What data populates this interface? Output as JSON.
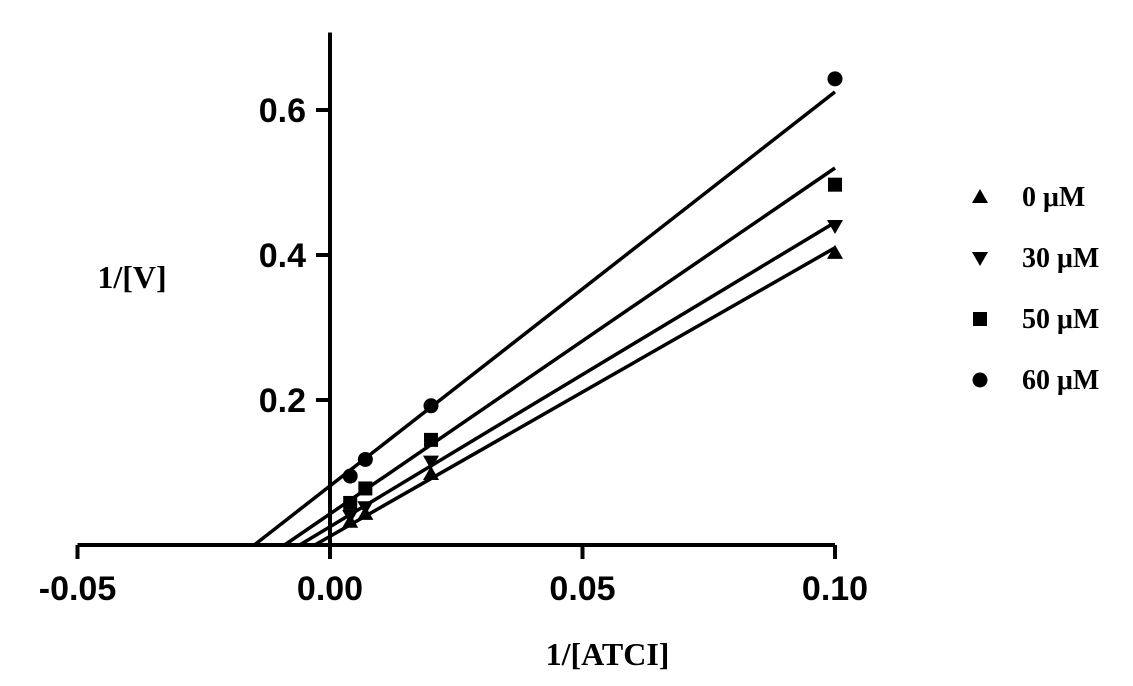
{
  "chart_data": {
    "type": "line",
    "title": "",
    "xlabel": "1/[ATCI]",
    "ylabel": "1/[V]",
    "xlim": [
      -0.05,
      0.1
    ],
    "ylim": [
      0,
      0.7
    ],
    "x_ticks": [
      {
        "value": -0.05,
        "label": "-0.05"
      },
      {
        "value": 0.0,
        "label": "0.00"
      },
      {
        "value": 0.05,
        "label": "0.05"
      },
      {
        "value": 0.1,
        "label": "0.10"
      }
    ],
    "y_ticks": [
      {
        "value": 0.2,
        "label": "0.2"
      },
      {
        "value": 0.4,
        "label": "0.4"
      },
      {
        "value": 0.6,
        "label": "0.6"
      }
    ],
    "grid": false,
    "legend_position": "right",
    "series": [
      {
        "name": "0 μM",
        "marker": "triangle-up",
        "x": [
          0.004,
          0.007,
          0.02,
          0.1
        ],
        "y": [
          0.032,
          0.043,
          0.098,
          0.403
        ],
        "fit_line": {
          "x": [
            -0.003,
            0.1
          ],
          "y": [
            0.0,
            0.41
          ]
        }
      },
      {
        "name": "30 μM",
        "marker": "triangle-down",
        "x": [
          0.004,
          0.007,
          0.02,
          0.1
        ],
        "y": [
          0.04,
          0.052,
          0.115,
          0.44
        ],
        "fit_line": {
          "x": [
            -0.006,
            0.1
          ],
          "y": [
            0.0,
            0.445
          ]
        }
      },
      {
        "name": "50 μM",
        "marker": "square",
        "x": [
          0.004,
          0.007,
          0.02,
          0.1
        ],
        "y": [
          0.058,
          0.078,
          0.145,
          0.497
        ],
        "fit_line": {
          "x": [
            -0.009,
            0.1
          ],
          "y": [
            0.0,
            0.52
          ]
        }
      },
      {
        "name": "60 μM",
        "marker": "circle",
        "x": [
          0.004,
          0.007,
          0.02,
          0.1
        ],
        "y": [
          0.095,
          0.118,
          0.192,
          0.643
        ],
        "fit_line": {
          "x": [
            -0.015,
            0.1
          ],
          "y": [
            0.0,
            0.625
          ]
        }
      }
    ],
    "colors": {
      "ink": "#000000",
      "background": "#ffffff"
    }
  }
}
